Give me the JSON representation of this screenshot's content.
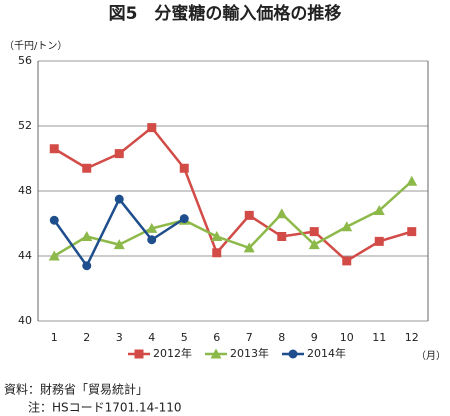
{
  "chart_data": {
    "type": "line",
    "title": "図5　分蜜糖の輸入価格の推移",
    "y_label": "（千円/トン）",
    "x_label": "（月）",
    "categories": [
      "1",
      "2",
      "3",
      "4",
      "5",
      "6",
      "7",
      "8",
      "9",
      "10",
      "11",
      "12"
    ],
    "ylim": [
      40,
      56
    ],
    "yticks": [
      40,
      44,
      48,
      52,
      56
    ],
    "grid": true,
    "series": [
      {
        "name": "2012年",
        "color": "#d24b47",
        "marker": "square",
        "values": [
          50.6,
          49.4,
          50.3,
          51.9,
          49.4,
          44.2,
          46.5,
          45.2,
          45.5,
          43.7,
          44.9,
          45.5
        ]
      },
      {
        "name": "2013年",
        "color": "#8db94a",
        "marker": "triangle",
        "values": [
          44.0,
          45.2,
          44.7,
          45.7,
          46.2,
          45.2,
          44.5,
          46.6,
          44.7,
          45.8,
          46.8,
          48.6
        ]
      },
      {
        "name": "2014年",
        "color": "#1f4e8c",
        "marker": "circle",
        "values": [
          46.2,
          43.4,
          47.5,
          45.0,
          46.3,
          null,
          null,
          null,
          null,
          null,
          null,
          null
        ]
      }
    ],
    "legend": "bottom",
    "notes": [
      "資料：財務省「貿易統計」",
      "注：HSコード1701.14-110"
    ]
  }
}
